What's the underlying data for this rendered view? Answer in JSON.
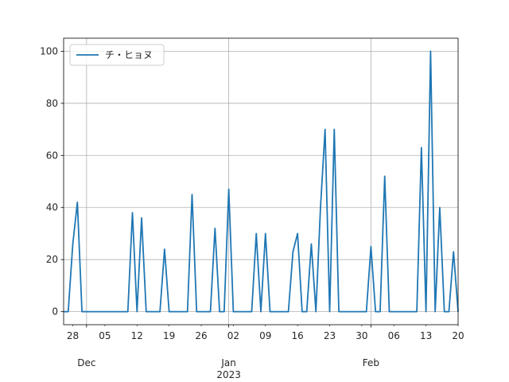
{
  "chart_data": {
    "type": "line",
    "title": "",
    "xlabel": "",
    "ylabel": "",
    "x_start": "2022-11-26",
    "x_end": "2023-02-20",
    "ylim": [
      -5,
      105
    ],
    "grid": true,
    "legend_position": "top-left",
    "series": [
      {
        "name": "チ・ヒョヌ",
        "color": "#1f77b4",
        "points": [
          [
            "2022-11-26",
            0
          ],
          [
            "2022-11-27",
            0
          ],
          [
            "2022-11-28",
            26
          ],
          [
            "2022-11-29",
            42
          ],
          [
            "2022-11-30",
            0
          ],
          [
            "2022-12-01",
            0
          ],
          [
            "2022-12-02",
            0
          ],
          [
            "2022-12-03",
            0
          ],
          [
            "2022-12-04",
            0
          ],
          [
            "2022-12-05",
            0
          ],
          [
            "2022-12-06",
            0
          ],
          [
            "2022-12-07",
            0
          ],
          [
            "2022-12-08",
            0
          ],
          [
            "2022-12-09",
            0
          ],
          [
            "2022-12-10",
            0
          ],
          [
            "2022-12-11",
            38
          ],
          [
            "2022-12-12",
            0
          ],
          [
            "2022-12-13",
            36
          ],
          [
            "2022-12-14",
            0
          ],
          [
            "2022-12-15",
            0
          ],
          [
            "2022-12-16",
            0
          ],
          [
            "2022-12-17",
            0
          ],
          [
            "2022-12-18",
            24
          ],
          [
            "2022-12-19",
            0
          ],
          [
            "2022-12-20",
            0
          ],
          [
            "2022-12-21",
            0
          ],
          [
            "2022-12-22",
            0
          ],
          [
            "2022-12-23",
            0
          ],
          [
            "2022-12-24",
            45
          ],
          [
            "2022-12-25",
            0
          ],
          [
            "2022-12-26",
            0
          ],
          [
            "2022-12-27",
            0
          ],
          [
            "2022-12-28",
            0
          ],
          [
            "2022-12-29",
            32
          ],
          [
            "2022-12-30",
            0
          ],
          [
            "2022-12-31",
            0
          ],
          [
            "2023-01-01",
            47
          ],
          [
            "2023-01-02",
            0
          ],
          [
            "2023-01-03",
            0
          ],
          [
            "2023-01-04",
            0
          ],
          [
            "2023-01-05",
            0
          ],
          [
            "2023-01-06",
            0
          ],
          [
            "2023-01-07",
            30
          ],
          [
            "2023-01-08",
            0
          ],
          [
            "2023-01-09",
            30
          ],
          [
            "2023-01-10",
            0
          ],
          [
            "2023-01-11",
            0
          ],
          [
            "2023-01-12",
            0
          ],
          [
            "2023-01-13",
            0
          ],
          [
            "2023-01-14",
            0
          ],
          [
            "2023-01-15",
            23
          ],
          [
            "2023-01-16",
            30
          ],
          [
            "2023-01-17",
            0
          ],
          [
            "2023-01-18",
            0
          ],
          [
            "2023-01-19",
            26
          ],
          [
            "2023-01-20",
            0
          ],
          [
            "2023-01-21",
            40
          ],
          [
            "2023-01-22",
            70
          ],
          [
            "2023-01-23",
            0
          ],
          [
            "2023-01-24",
            70
          ],
          [
            "2023-01-25",
            0
          ],
          [
            "2023-01-26",
            0
          ],
          [
            "2023-01-27",
            0
          ],
          [
            "2023-01-28",
            0
          ],
          [
            "2023-01-29",
            0
          ],
          [
            "2023-01-30",
            0
          ],
          [
            "2023-01-31",
            0
          ],
          [
            "2023-02-01",
            25
          ],
          [
            "2023-02-02",
            0
          ],
          [
            "2023-02-03",
            0
          ],
          [
            "2023-02-04",
            52
          ],
          [
            "2023-02-05",
            0
          ],
          [
            "2023-02-06",
            0
          ],
          [
            "2023-02-07",
            0
          ],
          [
            "2023-02-08",
            0
          ],
          [
            "2023-02-09",
            0
          ],
          [
            "2023-02-10",
            0
          ],
          [
            "2023-02-11",
            0
          ],
          [
            "2023-02-12",
            63
          ],
          [
            "2023-02-13",
            0
          ],
          [
            "2023-02-14",
            100
          ],
          [
            "2023-02-15",
            0
          ],
          [
            "2023-02-16",
            40
          ],
          [
            "2023-02-17",
            0
          ],
          [
            "2023-02-18",
            0
          ],
          [
            "2023-02-19",
            23
          ],
          [
            "2023-02-20",
            0
          ]
        ]
      }
    ],
    "y_ticks": [
      0,
      20,
      40,
      60,
      80,
      100
    ],
    "x_minor_ticks": [
      {
        "date": "2022-11-28",
        "label": "28"
      },
      {
        "date": "2022-12-05",
        "label": "05"
      },
      {
        "date": "2022-12-12",
        "label": "12"
      },
      {
        "date": "2022-12-19",
        "label": "19"
      },
      {
        "date": "2022-12-26",
        "label": "26"
      },
      {
        "date": "2023-01-02",
        "label": "02"
      },
      {
        "date": "2023-01-09",
        "label": "09"
      },
      {
        "date": "2023-01-16",
        "label": "16"
      },
      {
        "date": "2023-01-23",
        "label": "23"
      },
      {
        "date": "2023-01-30",
        "label": "30"
      },
      {
        "date": "2023-02-06",
        "label": "06"
      },
      {
        "date": "2023-02-13",
        "label": "13"
      },
      {
        "date": "2023-02-20",
        "label": "20"
      }
    ],
    "x_major_ticks": [
      {
        "date": "2022-12-01",
        "label": "Dec"
      },
      {
        "date": "2023-01-01",
        "label": "Jan\n2023"
      },
      {
        "date": "2023-02-01",
        "label": "Feb"
      }
    ]
  }
}
